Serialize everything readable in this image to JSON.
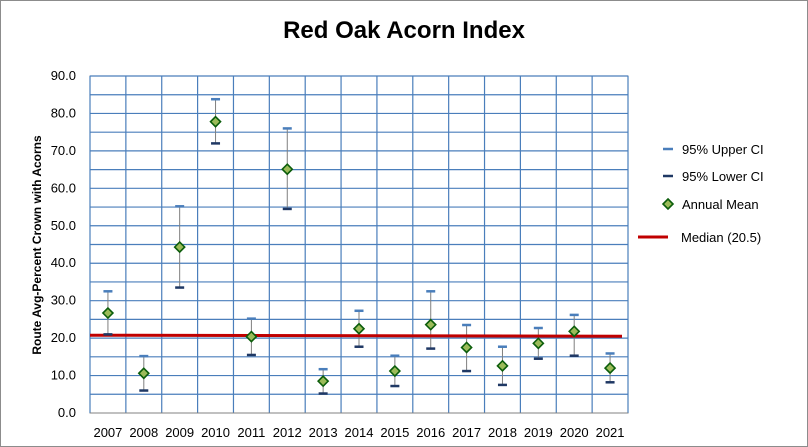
{
  "chart_data": {
    "type": "scatter",
    "title": "Red Oak Acorn Index",
    "ylabel": "Route Avg-Percent Crown with Acorns",
    "xlabel": "",
    "ylim": [
      0,
      90
    ],
    "y_ticks": [
      "0.0",
      "10.0",
      "20.0",
      "30.0",
      "40.0",
      "50.0",
      "60.0",
      "70.0",
      "80.0",
      "90.0"
    ],
    "y_tick_values": [
      0,
      10,
      20,
      30,
      40,
      50,
      60,
      70,
      80,
      90
    ],
    "grid": true,
    "legend_position": "right",
    "categories": [
      "2007",
      "2008",
      "2009",
      "2010",
      "2011",
      "2012",
      "2013",
      "2014",
      "2015",
      "2016",
      "2017",
      "2018",
      "2019",
      "2020",
      "2021"
    ],
    "series": [
      {
        "name": "95% Upper CI",
        "color": "#4a7ebb",
        "values": [
          32.5,
          15.2,
          55.2,
          83.8,
          25.2,
          76.0,
          11.7,
          27.3,
          15.3,
          32.5,
          23.5,
          17.7,
          22.7,
          26.2,
          15.9
        ]
      },
      {
        "name": "95% Lower CI",
        "color": "#1f3864",
        "values": [
          21.0,
          6.0,
          33.5,
          72.0,
          15.5,
          54.5,
          5.2,
          17.7,
          7.2,
          17.2,
          11.2,
          7.5,
          14.5,
          15.3,
          8.2
        ]
      },
      {
        "name": "Annual Mean",
        "color": "#008000",
        "values": [
          26.7,
          10.6,
          44.3,
          77.8,
          20.4,
          65.1,
          8.5,
          22.5,
          11.2,
          23.6,
          17.5,
          12.6,
          18.6,
          21.8,
          12.0
        ]
      }
    ],
    "reference_line": {
      "name": "Median (20.5)",
      "value": 20.5,
      "color": "#c00000"
    }
  }
}
